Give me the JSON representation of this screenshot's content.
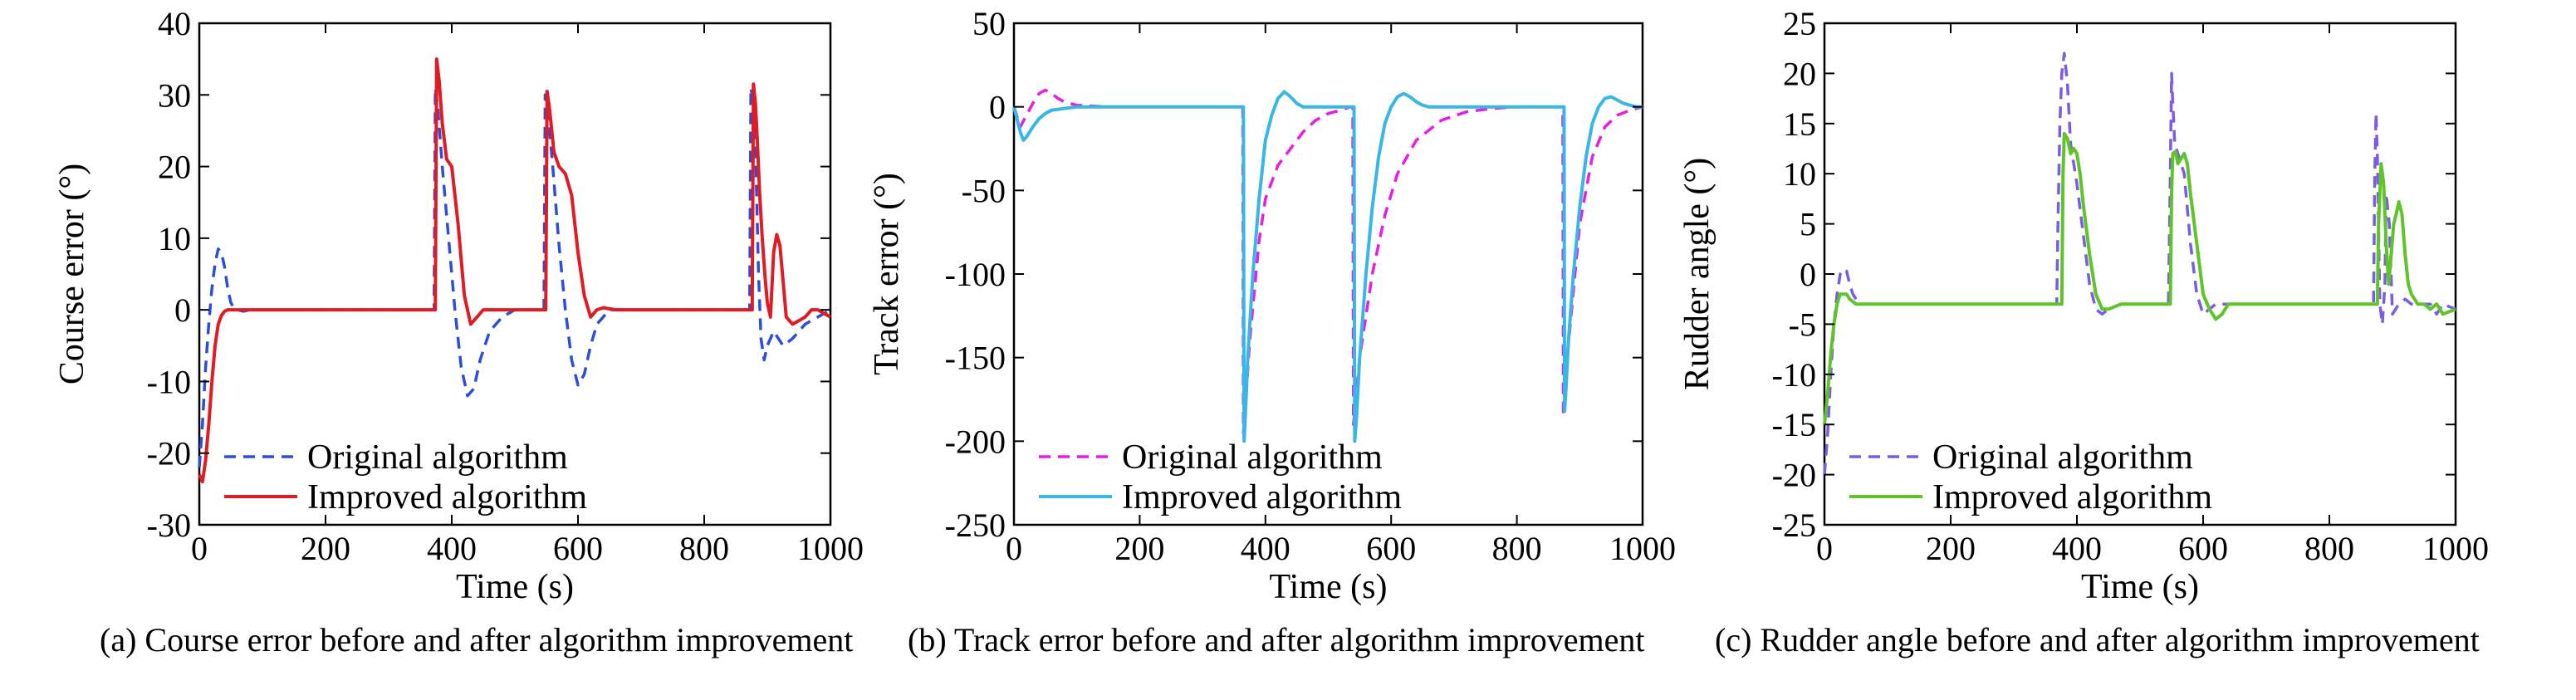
{
  "chart_data": [
    {
      "type": "line",
      "panel": "a",
      "caption": "(a) Course error before and after algorithm improvement",
      "xlabel": "Time (s)",
      "ylabel": "Course error (°)",
      "xlim": [
        0,
        1000
      ],
      "ylim": [
        -30,
        40
      ],
      "xticks": [
        0,
        200,
        400,
        600,
        800,
        1000
      ],
      "yticks": [
        -30,
        -20,
        -10,
        0,
        10,
        20,
        30,
        40
      ],
      "grid": false,
      "legend_position": "bottom-left",
      "series": [
        {
          "name": "Original algorithm",
          "color": "#2b4fd9",
          "dash": "dashed",
          "x": [
            0,
            5,
            10,
            15,
            20,
            25,
            30,
            35,
            40,
            45,
            50,
            55,
            60,
            70,
            80,
            100,
            150,
            200,
            250,
            300,
            350,
            372,
            374,
            378,
            385,
            395,
            405,
            415,
            425,
            435,
            445,
            460,
            480,
            500,
            520,
            540,
            546,
            548,
            552,
            560,
            570,
            580,
            590,
            600,
            610,
            620,
            630,
            650,
            700,
            750,
            800,
            850,
            872,
            874,
            878,
            882,
            886,
            890,
            895,
            900,
            910,
            925,
            940,
            960,
            980,
            1000
          ],
          "y": [
            -22,
            -16,
            -8,
            -2,
            3,
            6.5,
            8.5,
            8,
            6,
            3,
            1,
            0.2,
            0,
            -0.2,
            0,
            0,
            0,
            0,
            0,
            0,
            0,
            0,
            31,
            28,
            20,
            10,
            0,
            -8,
            -12,
            -11,
            -7,
            -3,
            -1,
            0,
            0,
            0,
            0,
            30,
            28,
            20,
            9,
            0,
            -7,
            -10.5,
            -9,
            -5,
            -2,
            0,
            0,
            0,
            0,
            0,
            0,
            31,
            29,
            20,
            5,
            -4,
            -7,
            -5,
            -3,
            -5,
            -4,
            -2,
            -1,
            0
          ]
        },
        {
          "name": "Improved algorithm",
          "color": "#e01b24",
          "dash": "solid",
          "x": [
            0,
            5,
            10,
            15,
            20,
            25,
            30,
            35,
            40,
            45,
            50,
            60,
            80,
            100,
            150,
            200,
            250,
            300,
            350,
            374,
            376,
            380,
            385,
            392,
            400,
            410,
            420,
            430,
            440,
            450,
            460,
            480,
            500,
            520,
            540,
            549,
            551,
            555,
            562,
            570,
            580,
            590,
            600,
            610,
            620,
            630,
            640,
            660,
            700,
            750,
            800,
            850,
            876,
            878,
            881,
            884,
            888,
            892,
            896,
            900,
            905,
            910,
            915,
            920,
            925,
            930,
            940,
            950,
            960,
            970,
            980,
            990,
            1000
          ],
          "y": [
            -23,
            -24,
            -21,
            -16,
            -10,
            -5,
            -2,
            -0.8,
            -0.2,
            0,
            0,
            0,
            0,
            0,
            0,
            0,
            0,
            0,
            0,
            0,
            35,
            32,
            26,
            21,
            20,
            12,
            2,
            -2,
            -1,
            0,
            0,
            0,
            0,
            0,
            0,
            0,
            30.5,
            28,
            22,
            20,
            19,
            16,
            8,
            2,
            -1,
            0,
            0.3,
            0,
            0,
            0,
            0,
            0,
            0,
            31.5,
            29,
            24,
            16,
            10,
            5,
            1,
            -1,
            8,
            10.5,
            9,
            4,
            -1,
            -2,
            -1.5,
            -1,
            0,
            0,
            -0.5,
            -1
          ]
        }
      ]
    },
    {
      "type": "line",
      "panel": "b",
      "caption": "(b) Track error before and after algorithm improvement",
      "xlabel": "Time (s)",
      "ylabel": "Track error (°)",
      "xlim": [
        0,
        1000
      ],
      "ylim": [
        -250,
        50
      ],
      "xticks": [
        0,
        200,
        400,
        600,
        800,
        1000
      ],
      "yticks": [
        -250,
        -200,
        -150,
        -100,
        -50,
        0,
        50
      ],
      "grid": false,
      "legend_position": "bottom-left",
      "series": [
        {
          "name": "Original algorithm",
          "color": "#e81ce6",
          "dash": "dashed",
          "x": [
            0,
            10,
            20,
            30,
            40,
            50,
            60,
            70,
            80,
            100,
            150,
            200,
            300,
            364,
            365,
            368,
            375,
            390,
            400,
            420,
            440,
            460,
            480,
            500,
            520,
            535,
            539,
            540,
            544,
            550,
            570,
            590,
            610,
            640,
            680,
            720,
            760,
            800,
            840,
            870,
            873,
            874,
            876,
            880,
            890,
            900,
            920,
            940,
            960,
            980,
            1000
          ],
          "y": [
            0,
            -12,
            -5,
            2,
            8,
            10,
            8,
            5,
            3,
            1,
            0,
            0,
            0,
            0,
            -195,
            -180,
            -140,
            -80,
            -55,
            -35,
            -25,
            -15,
            -8,
            -4,
            -2,
            0,
            0,
            -190,
            -175,
            -150,
            -100,
            -65,
            -40,
            -20,
            -8,
            -3,
            -1,
            0,
            0,
            0,
            0,
            -185,
            -175,
            -150,
            -110,
            -70,
            -30,
            -12,
            -5,
            -2,
            0
          ]
        },
        {
          "name": "Improved algorithm",
          "color": "#38b6e8",
          "dash": "solid",
          "x": [
            0,
            10,
            15,
            20,
            30,
            40,
            50,
            60,
            80,
            100,
            150,
            200,
            300,
            365,
            366,
            368,
            372,
            380,
            390,
            400,
            410,
            420,
            430,
            440,
            450,
            460,
            480,
            500,
            520,
            538,
            541,
            542,
            545,
            550,
            560,
            570,
            580,
            590,
            600,
            610,
            620,
            630,
            640,
            650,
            660,
            680,
            720,
            760,
            800,
            840,
            872,
            875,
            876,
            878,
            882,
            890,
            900,
            910,
            920,
            930,
            940,
            950,
            960,
            970,
            980,
            990,
            1000
          ],
          "y": [
            0,
            -15,
            -20,
            -18,
            -12,
            -7,
            -4,
            -2,
            -1,
            0,
            0,
            0,
            0,
            0,
            -200,
            -185,
            -150,
            -100,
            -55,
            -20,
            -5,
            5,
            9,
            6,
            2,
            0,
            0,
            0,
            0,
            0,
            0,
            -200,
            -185,
            -150,
            -100,
            -60,
            -30,
            -10,
            0,
            6,
            8,
            6,
            3,
            1,
            0,
            0,
            0,
            0,
            0,
            0,
            0,
            0,
            -182,
            -170,
            -140,
            -100,
            -60,
            -30,
            -10,
            0,
            5,
            6,
            4,
            2,
            1,
            0,
            0
          ]
        }
      ]
    },
    {
      "type": "line",
      "panel": "c",
      "caption": "(c) Rudder angle before and after algorithm improvement",
      "xlabel": "Time (s)",
      "ylabel": "Rudder angle (°)",
      "xlim": [
        0,
        1000
      ],
      "ylim": [
        -25,
        25
      ],
      "xticks": [
        0,
        200,
        400,
        600,
        800,
        1000
      ],
      "yticks": [
        -25,
        -20,
        -15,
        -10,
        -5,
        0,
        5,
        10,
        15,
        20,
        25
      ],
      "grid": false,
      "legend_position": "bottom-left",
      "series": [
        {
          "name": "Original algorithm",
          "color": "#7a5ce6",
          "dash": "dashed",
          "x": [
            0,
            5,
            10,
            15,
            20,
            25,
            30,
            35,
            40,
            45,
            50,
            55,
            60,
            70,
            80,
            100,
            150,
            200,
            250,
            300,
            350,
            368,
            370,
            373,
            376,
            380,
            385,
            390,
            395,
            400,
            410,
            420,
            430,
            440,
            450,
            470,
            500,
            530,
            545,
            548,
            550,
            552,
            555,
            560,
            565,
            570,
            580,
            590,
            600,
            610,
            620,
            640,
            660,
            700,
            750,
            800,
            850,
            870,
            872,
            874,
            876,
            880,
            884,
            888,
            890,
            895,
            900,
            910,
            920,
            930,
            940,
            950,
            960,
            970,
            980,
            1000
          ],
          "y": [
            -20,
            -16,
            -10,
            -5,
            -2,
            0,
            0.5,
            0.3,
            -1,
            -2,
            -2.5,
            -3,
            -3,
            -3,
            -3,
            -3,
            -3,
            -3,
            -3,
            -3,
            -3,
            -3,
            5,
            15,
            20,
            22,
            19,
            13,
            11,
            9,
            4,
            -1,
            -3.5,
            -4,
            -3.5,
            -3,
            -3,
            -3,
            -3,
            10,
            20,
            17,
            13,
            12,
            11,
            10,
            3,
            -2,
            -4,
            -3.5,
            -3,
            -3,
            -3,
            -3,
            -3,
            -3,
            -3,
            -3,
            10,
            16,
            12,
            -3,
            -5,
            -1,
            8,
            5,
            -4,
            -3,
            -2.5,
            -3,
            -3,
            -3,
            -3,
            -4,
            -3,
            -3.5
          ]
        },
        {
          "name": "Improved algorithm",
          "color": "#5fc428",
          "dash": "solid",
          "x": [
            0,
            5,
            10,
            15,
            20,
            25,
            30,
            35,
            40,
            50,
            60,
            80,
            100,
            150,
            200,
            250,
            300,
            350,
            376,
            378,
            380,
            385,
            390,
            395,
            400,
            405,
            410,
            420,
            430,
            440,
            450,
            470,
            500,
            530,
            548,
            550,
            552,
            556,
            560,
            565,
            570,
            575,
            580,
            590,
            600,
            610,
            620,
            630,
            640,
            660,
            700,
            750,
            800,
            850,
            876,
            878,
            882,
            886,
            890,
            894,
            898,
            902,
            906,
            910,
            915,
            920,
            925,
            930,
            935,
            940,
            950,
            960,
            970,
            980,
            1000
          ],
          "y": [
            -15,
            -12,
            -8,
            -5,
            -3,
            -2,
            -2,
            -2,
            -2.5,
            -3,
            -3,
            -3,
            -3,
            -3,
            -3,
            -3,
            -3,
            -3,
            -3,
            10,
            14,
            13.5,
            12,
            12.5,
            12,
            10,
            7,
            2,
            -2,
            -3.5,
            -3.5,
            -3,
            -3,
            -3,
            -3,
            8,
            12,
            12.2,
            11,
            11.5,
            12,
            11,
            8,
            3,
            -2,
            -3.5,
            -4.5,
            -4,
            -3,
            -3,
            -3,
            -3,
            -3,
            -3,
            -3,
            5,
            11,
            9,
            3,
            -1,
            2,
            5,
            6,
            7.2,
            6,
            2,
            -1,
            -2,
            -2.5,
            -3,
            -3,
            -3.5,
            -3,
            -4,
            -3.5
          ]
        }
      ]
    }
  ]
}
